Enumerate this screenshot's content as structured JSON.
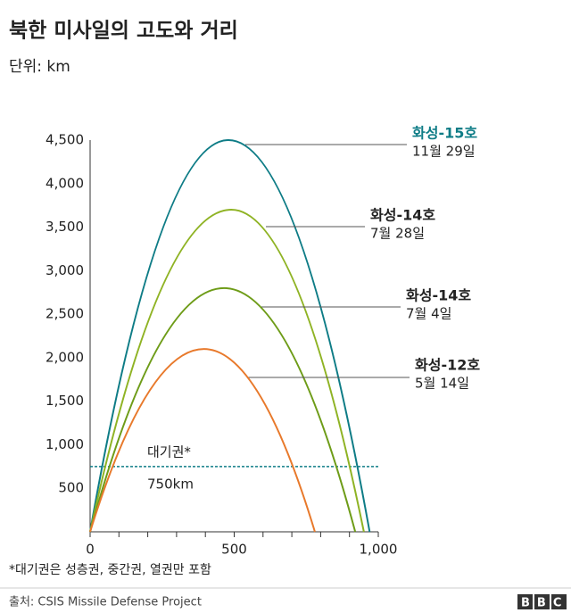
{
  "chart_data": {
    "type": "trajectory",
    "title": "북한 미사일의 고도와 거리",
    "subtitle": "단위: km",
    "xlim": [
      0,
      1000
    ],
    "ylim": [
      0,
      4500
    ],
    "xticks": [
      0,
      500,
      {
        "value": 1000,
        "label": "1,000"
      }
    ],
    "xminorticks": [
      100,
      200,
      300,
      400,
      600,
      700,
      800,
      900
    ],
    "yticks": [
      500,
      {
        "value": 1000,
        "label": "1,000"
      },
      {
        "value": 1500,
        "label": "1,500"
      },
      {
        "value": 2000,
        "label": "2,000"
      },
      {
        "value": 2500,
        "label": "2,500"
      },
      {
        "value": 3000,
        "label": "3,000"
      },
      {
        "value": 3500,
        "label": "3,500"
      },
      {
        "value": 4000,
        "label": "4,000"
      },
      {
        "value": 4500,
        "label": "4,500"
      }
    ],
    "series": [
      {
        "name": "화성-15호",
        "date": "11월 29일",
        "color": "#0e7c86",
        "label_color": "#0e7c86",
        "x": [
          0,
          480,
          970
        ],
        "values": [
          0,
          4500,
          0
        ]
      },
      {
        "name": "화성-14호",
        "date": "7월 28일",
        "color": "#8fb324",
        "label_color": "#222222",
        "x": [
          0,
          490,
          950
        ],
        "values": [
          0,
          3700,
          0
        ]
      },
      {
        "name": "화성-14호",
        "date": "7월 4일",
        "color": "#6e9c18",
        "label_color": "#222222",
        "x": [
          0,
          465,
          920
        ],
        "values": [
          0,
          2800,
          0
        ]
      },
      {
        "name": "화성-12호",
        "date": "5월 14일",
        "color": "#e8792b",
        "label_color": "#222222",
        "x": [
          0,
          395,
          780
        ],
        "values": [
          0,
          2100,
          0
        ]
      }
    ],
    "reference_line": {
      "value": 750,
      "label": "대기권*",
      "value_label": "750km",
      "color": "#0e7c86"
    },
    "footnote": "*대기권은 성층권, 중간권, 열권만 포함",
    "source": "출처: CSIS Missile Defense Project",
    "logo": "BBC"
  }
}
